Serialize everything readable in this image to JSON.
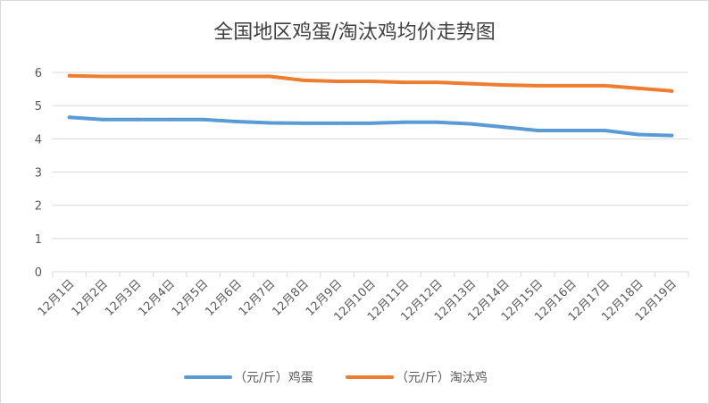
{
  "chart_data": {
    "type": "line",
    "title": "全国地区鸡蛋/淘汰鸡均价走势图",
    "xlabel": "",
    "ylabel": "",
    "categories": [
      "12月1日",
      "12月2日",
      "12月3日",
      "12月4日",
      "12月5日",
      "12月6日",
      "12月7日",
      "12月8日",
      "12月9日",
      "12月10日",
      "12月11日",
      "12月12日",
      "12月13日",
      "12月14日",
      "12月15日",
      "12月16日",
      "12月17日",
      "12月18日",
      "12月19日"
    ],
    "ylim": [
      0,
      6
    ],
    "yticks": [
      0,
      1,
      2,
      3,
      4,
      5,
      6
    ],
    "grid": true,
    "legend_position": "bottom",
    "series": [
      {
        "name": "（元/斤）鸡蛋",
        "color": "#5b9bd5",
        "values": [
          4.65,
          4.58,
          4.58,
          4.58,
          4.58,
          4.52,
          4.48,
          4.47,
          4.47,
          4.47,
          4.5,
          4.5,
          4.45,
          4.35,
          4.25,
          4.25,
          4.25,
          4.13,
          4.1
        ]
      },
      {
        "name": "（元/斤）淘汰鸡",
        "color": "#ed7d31",
        "values": [
          5.9,
          5.88,
          5.88,
          5.88,
          5.88,
          5.88,
          5.88,
          5.76,
          5.73,
          5.73,
          5.7,
          5.7,
          5.66,
          5.62,
          5.6,
          5.6,
          5.6,
          5.52,
          5.44
        ]
      }
    ]
  }
}
